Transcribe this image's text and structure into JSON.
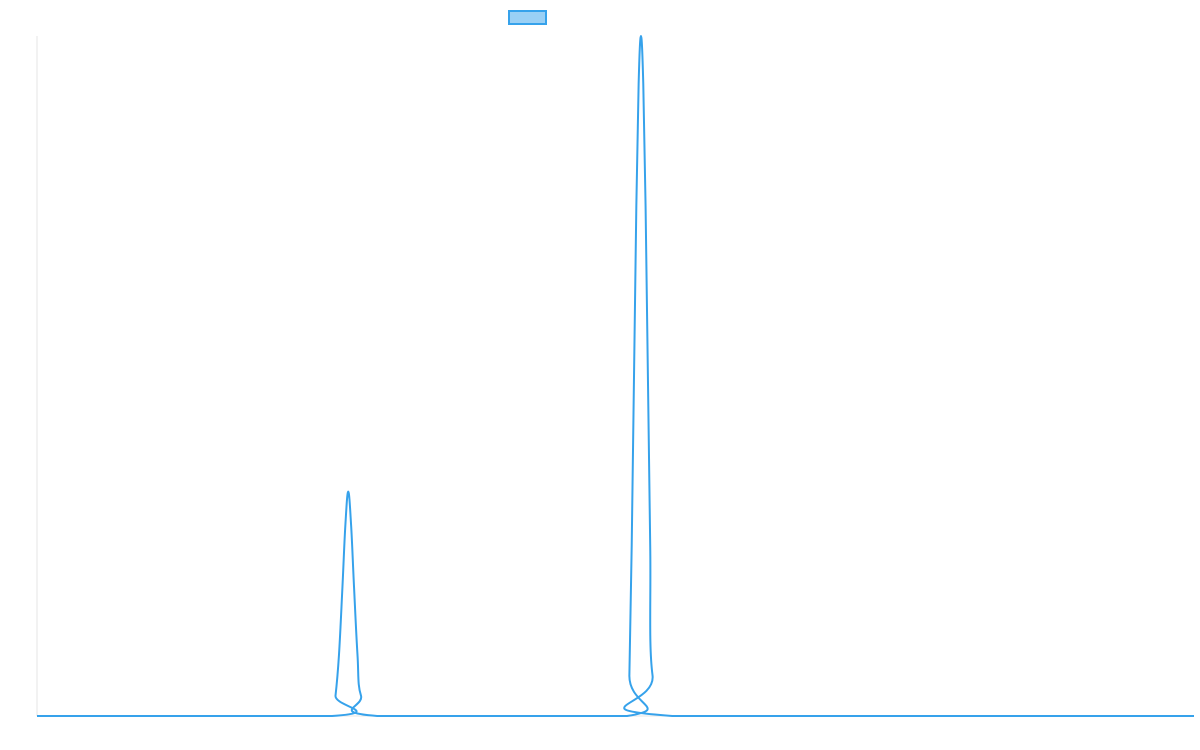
{
  "chart_data": {
    "type": "line",
    "title": "",
    "xlabel": "",
    "ylabel": "",
    "grid": false,
    "legend_position": "top",
    "xlim": [
      0,
      1000
    ],
    "ylim": [
      0,
      100
    ],
    "series": [
      {
        "name": "",
        "color": "#36a2eb",
        "fill_color": "#9ad0f5",
        "points": [
          [
            0,
            0
          ],
          [
            255,
            0
          ],
          [
            258,
            3
          ],
          [
            261,
            9
          ],
          [
            264,
            19
          ],
          [
            266.5,
            28
          ],
          [
            269,
            33
          ],
          [
            271.5,
            28
          ],
          [
            274,
            19
          ],
          [
            277,
            9
          ],
          [
            280,
            3
          ],
          [
            294,
            0
          ],
          [
            510,
            0
          ],
          [
            512,
            6
          ],
          [
            514,
            25
          ],
          [
            516,
            50
          ],
          [
            518,
            75
          ],
          [
            520,
            93
          ],
          [
            522,
            100
          ],
          [
            524,
            93
          ],
          [
            526,
            75
          ],
          [
            528,
            50
          ],
          [
            530,
            25
          ],
          [
            532,
            6
          ],
          [
            549,
            0
          ],
          [
            1000,
            0
          ]
        ]
      }
    ]
  }
}
